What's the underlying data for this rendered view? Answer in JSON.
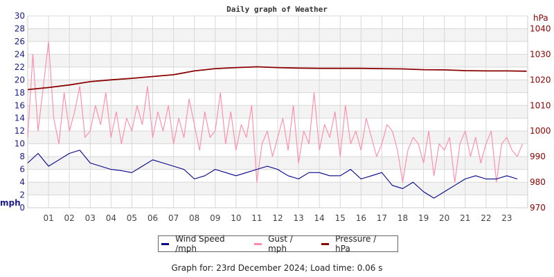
{
  "chart_data": {
    "type": "line",
    "title": "Daily graph of Weather",
    "x_unit": "hour",
    "xlim": [
      0,
      24
    ],
    "x_tick_labels": [
      "01",
      "02",
      "03",
      "04",
      "05",
      "06",
      "07",
      "08",
      "09",
      "10",
      "11",
      "12",
      "13",
      "14",
      "15",
      "16",
      "17",
      "18",
      "19",
      "20",
      "21",
      "22",
      "23"
    ],
    "y_left": {
      "label": "mph",
      "ylim": [
        0,
        30
      ],
      "ticks": [
        0,
        2,
        4,
        6,
        8,
        10,
        12,
        14,
        16,
        18,
        20,
        22,
        24,
        26,
        28,
        30
      ]
    },
    "y_right": {
      "label": "hPa",
      "ylim": [
        970,
        1045
      ],
      "ticks": [
        970,
        980,
        990,
        1000,
        1010,
        1020,
        1030,
        1040
      ]
    },
    "grid": true,
    "legend_placement": "bottom",
    "series": [
      {
        "name": "Wind Speed /mph",
        "axis": "left",
        "color": "#00008b",
        "x_step_hours": 0.5,
        "values": [
          7,
          8.5,
          6.5,
          7.5,
          8.5,
          9,
          7,
          6.5,
          6,
          5.8,
          5.5,
          6.5,
          7.5,
          7,
          6.5,
          6,
          4.5,
          5,
          6,
          5.5,
          5,
          5.5,
          6,
          6.5,
          6,
          5,
          4.5,
          5.5,
          5.5,
          5,
          5,
          6,
          4.5,
          5,
          5.5,
          3.5,
          3,
          4,
          2.5,
          1.5,
          2.5,
          3.5,
          4.5,
          5,
          4.5,
          4.5,
          5,
          4.5
        ]
      },
      {
        "name": "Gust / mph",
        "axis": "left",
        "color": "#ff88aa",
        "x_step_hours": 0.25,
        "values": [
          11,
          24,
          12,
          19,
          26,
          14,
          10,
          18,
          12,
          15,
          19,
          11,
          12,
          16,
          13,
          18,
          11,
          15,
          10,
          14,
          12,
          16,
          13,
          19,
          11,
          15,
          12,
          16,
          10,
          14,
          11,
          17,
          13,
          9,
          15,
          11,
          12,
          18,
          10,
          15,
          9,
          13,
          11,
          16,
          4,
          10,
          12,
          8,
          11,
          14,
          9,
          16,
          7,
          12,
          10,
          18,
          9,
          13,
          11,
          15,
          8,
          16,
          10,
          12,
          9,
          14,
          11,
          8,
          10,
          13,
          12,
          9,
          4,
          9,
          11,
          10,
          7,
          12,
          5,
          10,
          9,
          11,
          4,
          10,
          12,
          8,
          11,
          7,
          10,
          12,
          4,
          10,
          11,
          9,
          8,
          10
        ]
      },
      {
        "name": "Pressure / hPa",
        "axis": "right",
        "color": "#8b0000",
        "x_step_hours": 1,
        "values": [
          1016.2,
          1017,
          1018,
          1019.3,
          1020,
          1020.6,
          1021.3,
          1022,
          1023.5,
          1024.4,
          1024.8,
          1025.1,
          1024.8,
          1024.6,
          1024.5,
          1024.5,
          1024.5,
          1024.4,
          1024.3,
          1024,
          1023.9,
          1023.6,
          1023.5,
          1023.5,
          1023.4
        ]
      }
    ]
  },
  "legend": {
    "items": [
      {
        "label": "Wind Speed /mph",
        "color": "#00008b"
      },
      {
        "label": "Gust / mph",
        "color": "#ff88aa"
      },
      {
        "label": "Pressure / hPa",
        "color": "#8b0000"
      }
    ]
  },
  "footer": "Graph for: 23rd December 2024; Load time: 0.06 s"
}
